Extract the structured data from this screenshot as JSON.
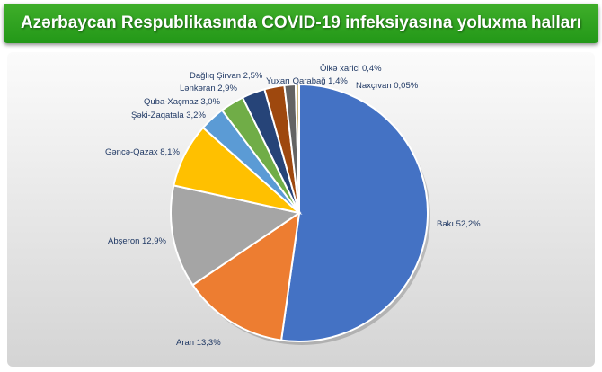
{
  "header": {
    "title": "Azərbaycan Respublikasında COVID-19 infeksiyasına yoluxma halları"
  },
  "chart_data": {
    "type": "pie",
    "title": "Azərbaycan Respublikasında COVID-19 infeksiyasına yoluxma halları",
    "slices": [
      {
        "name": "Bakı",
        "value": 52.2,
        "label": "Bakı  52,2%",
        "color": "#4472c4"
      },
      {
        "name": "Aran",
        "value": 13.3,
        "label": "Aran 13,3%",
        "color": "#ed7d31"
      },
      {
        "name": "Abşeron",
        "value": 12.9,
        "label": "Abşeron 12,9%",
        "color": "#a5a5a5"
      },
      {
        "name": "Gəncə-Qazax",
        "value": 8.1,
        "label": "Gəncə-Qazax 8,1%",
        "color": "#ffc000"
      },
      {
        "name": "Şəki-Zaqatala",
        "value": 3.2,
        "label": "Şəki-Zaqatala 3,2%",
        "color": "#5b9bd5"
      },
      {
        "name": "Quba-Xaçmaz",
        "value": 3.0,
        "label": "Quba-Xaçmaz 3,0%",
        "color": "#70ad47"
      },
      {
        "name": "Lənkəran",
        "value": 2.9,
        "label": "Lənkəran 2,9%",
        "color": "#264478"
      },
      {
        "name": "Dağlıq Şirvan",
        "value": 2.5,
        "label": "Dağlıq Şirvan 2,5%",
        "color": "#9e480e"
      },
      {
        "name": "Yuxarı Qarabağ",
        "value": 1.4,
        "label": "Yuxarı Qarabağ 1,4%",
        "color": "#636363"
      },
      {
        "name": "Ölkə xarici",
        "value": 0.4,
        "label": "Ölkə xarici 0,4%",
        "color": "#997300"
      },
      {
        "name": "Naxçıvan",
        "value": 0.05,
        "label": "Naxçıvan 0,05%",
        "color": "#255e91"
      }
    ]
  }
}
